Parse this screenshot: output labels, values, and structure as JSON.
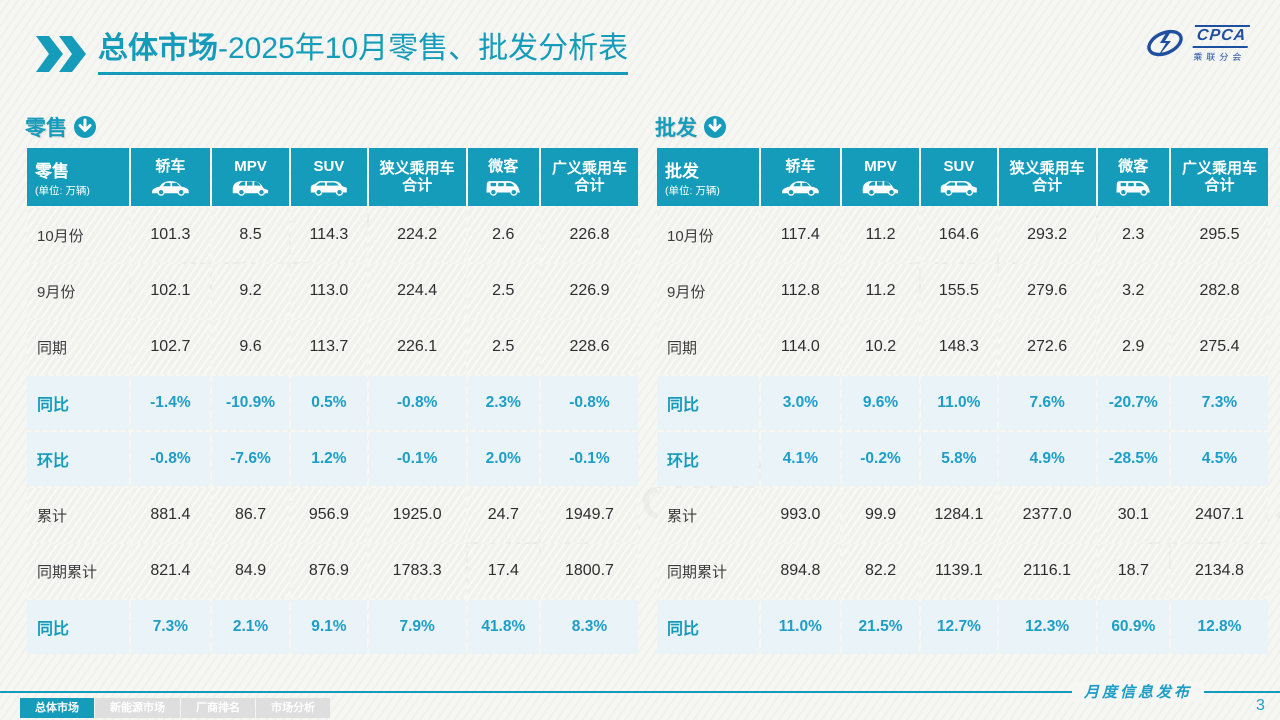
{
  "page": {
    "title_prefix": "总体市场",
    "title_rest": "-2025年10月零售、批发分析表"
  },
  "logo": {
    "name": "CPCA",
    "caption": "乘联分会"
  },
  "watermark_text": "乘联分会CPCA",
  "colors": {
    "accent": "#169CBB",
    "pct_text": "#1E9EC7",
    "logo_blue": "#1E4FA0",
    "pct_row_bg": "#E9F3F8"
  },
  "tables": [
    {
      "id": "retail",
      "section_label": "零售",
      "header_label": "零售",
      "header_unit": "(单位: 万辆)",
      "columns": [
        {
          "label": "轿车",
          "icon": "sedan-icon"
        },
        {
          "label": "MPV",
          "icon": "mpv-icon"
        },
        {
          "label": "SUV",
          "icon": "suv-icon"
        },
        {
          "label": "狭义乘用车\n合计"
        },
        {
          "label": "微客",
          "icon": "microvan-icon"
        },
        {
          "label": "广义乘用车\n合计"
        }
      ],
      "rows": [
        {
          "label": "10月份",
          "type": "data",
          "values": [
            "101.3",
            "8.5",
            "114.3",
            "224.2",
            "2.6",
            "226.8"
          ]
        },
        {
          "label": "9月份",
          "type": "data",
          "values": [
            "102.1",
            "9.2",
            "113.0",
            "224.4",
            "2.5",
            "226.9"
          ]
        },
        {
          "label": "同期",
          "type": "data",
          "values": [
            "102.7",
            "9.6",
            "113.7",
            "226.1",
            "2.5",
            "228.6"
          ]
        },
        {
          "label": "同比",
          "type": "pct",
          "values": [
            "-1.4%",
            "-10.9%",
            "0.5%",
            "-0.8%",
            "2.3%",
            "-0.8%"
          ]
        },
        {
          "label": "环比",
          "type": "pct",
          "values": [
            "-0.8%",
            "-7.6%",
            "1.2%",
            "-0.1%",
            "2.0%",
            "-0.1%"
          ]
        },
        {
          "label": "累计",
          "type": "data",
          "values": [
            "881.4",
            "86.7",
            "956.9",
            "1925.0",
            "24.7",
            "1949.7"
          ]
        },
        {
          "label": "同期累计",
          "type": "data",
          "values": [
            "821.4",
            "84.9",
            "876.9",
            "1783.3",
            "17.4",
            "1800.7"
          ]
        },
        {
          "label": "同比",
          "type": "pct",
          "values": [
            "7.3%",
            "2.1%",
            "9.1%",
            "7.9%",
            "41.8%",
            "8.3%"
          ]
        }
      ]
    },
    {
      "id": "wholesale",
      "section_label": "批发",
      "header_label": "批发",
      "header_unit": "(单位: 万辆)",
      "columns": [
        {
          "label": "轿车",
          "icon": "sedan-icon"
        },
        {
          "label": "MPV",
          "icon": "mpv-icon"
        },
        {
          "label": "SUV",
          "icon": "suv-icon"
        },
        {
          "label": "狭义乘用车\n合计"
        },
        {
          "label": "微客",
          "icon": "microvan-icon"
        },
        {
          "label": "广义乘用车\n合计"
        }
      ],
      "rows": [
        {
          "label": "10月份",
          "type": "data",
          "values": [
            "117.4",
            "11.2",
            "164.6",
            "293.2",
            "2.3",
            "295.5"
          ]
        },
        {
          "label": "9月份",
          "type": "data",
          "values": [
            "112.8",
            "11.2",
            "155.5",
            "279.6",
            "3.2",
            "282.8"
          ]
        },
        {
          "label": "同期",
          "type": "data",
          "values": [
            "114.0",
            "10.2",
            "148.3",
            "272.6",
            "2.9",
            "275.4"
          ]
        },
        {
          "label": "同比",
          "type": "pct",
          "values": [
            "3.0%",
            "9.6%",
            "11.0%",
            "7.6%",
            "-20.7%",
            "7.3%"
          ]
        },
        {
          "label": "环比",
          "type": "pct",
          "values": [
            "4.1%",
            "-0.2%",
            "5.8%",
            "4.9%",
            "-28.5%",
            "4.5%"
          ]
        },
        {
          "label": "累计",
          "type": "data",
          "values": [
            "993.0",
            "99.9",
            "1284.1",
            "2377.0",
            "30.1",
            "2407.1"
          ]
        },
        {
          "label": "同期累计",
          "type": "data",
          "values": [
            "894.8",
            "82.2",
            "1139.1",
            "2116.1",
            "18.7",
            "2134.8"
          ]
        },
        {
          "label": "同比",
          "type": "pct",
          "values": [
            "11.0%",
            "21.5%",
            "12.7%",
            "12.3%",
            "60.9%",
            "12.8%"
          ]
        }
      ]
    }
  ],
  "footer": {
    "tabs": [
      {
        "label": "总体市场",
        "active": true
      },
      {
        "label": "新能源市场",
        "active": false
      },
      {
        "label": "厂商排名",
        "active": false
      },
      {
        "label": "市场分析",
        "active": false
      }
    ],
    "publish_label": "月度信息发布",
    "page_number": "3"
  }
}
